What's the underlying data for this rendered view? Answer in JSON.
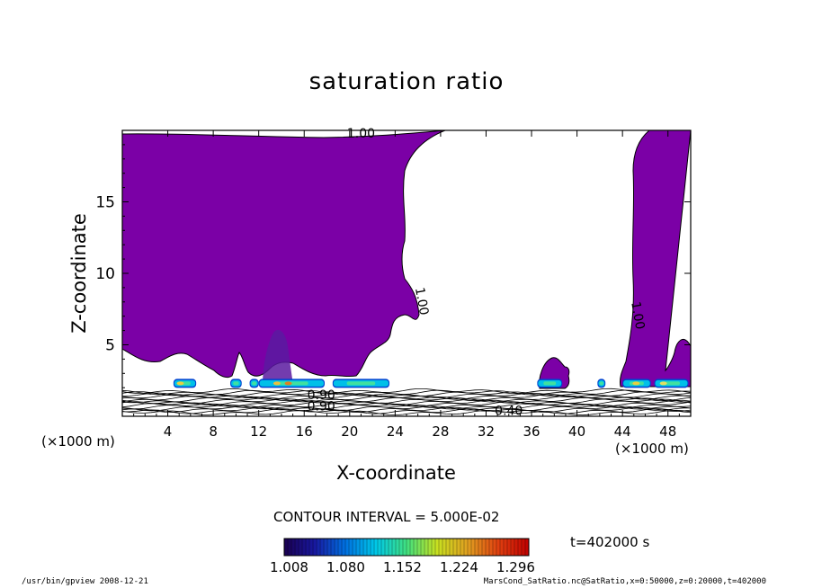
{
  "chart_data": {
    "type": "contour",
    "title": "saturation ratio",
    "xlabel": "X-coordinate",
    "ylabel": "Z-coordinate",
    "x_unit_label": "(×1000 m)",
    "xlim": [
      0,
      50
    ],
    "ylim": [
      0,
      20
    ],
    "x_ticks": [
      4,
      8,
      12,
      16,
      20,
      24,
      28,
      32,
      36,
      40,
      44,
      48
    ],
    "y_ticks": [
      5,
      10,
      15
    ],
    "contour_labels": [
      {
        "text": "1.00",
        "x": 21,
        "z": 19.5
      },
      {
        "text": "1.00",
        "x": 26,
        "z": 8
      },
      {
        "text": "1.00",
        "x": 45,
        "z": 7
      },
      {
        "text": "0.90",
        "x": 17.5,
        "z": 1.2
      },
      {
        "text": "0.90",
        "x": 17.5,
        "z": 0.4
      },
      {
        "text": "0.40",
        "x": 34,
        "z": 0.1
      }
    ],
    "contour_interval_text": "CONTOUR INTERVAL = 5.000E-02",
    "colorbar": {
      "tick_labels": [
        "1.008",
        "1.080",
        "1.152",
        "1.224",
        "1.296"
      ],
      "range": [
        1.0,
        1.3
      ],
      "colors": [
        "#1a0050",
        "#1818a0",
        "#0070e0",
        "#00c8e8",
        "#40e080",
        "#c8e020",
        "#e0a020",
        "#e04010",
        "#c00000"
      ]
    },
    "fill_color": "#7b00a6",
    "time_text": "t=402000 s",
    "grid": false
  },
  "footer": {
    "left": "/usr/bin/gpview  2008-12-21",
    "right": "MarsCond_SatRatio.nc@SatRatio,x=0:50000,z=0:20000,t=402000"
  }
}
